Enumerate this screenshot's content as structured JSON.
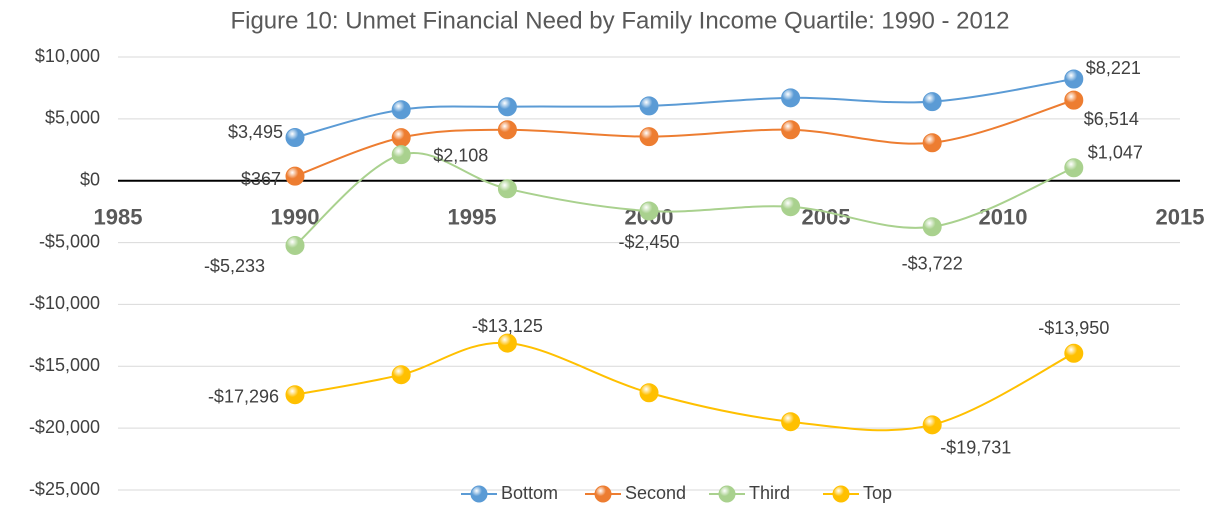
{
  "chart_data": {
    "type": "line",
    "title": "Figure 10: Unmet Financial Need by Family Income Quartile: 1990 - 2012",
    "x": [
      1990,
      1993,
      1996,
      2000,
      2004,
      2008,
      2012
    ],
    "series": [
      {
        "name": "Bottom",
        "color": "#5b9bd5",
        "values": [
          3495,
          5740,
          5980,
          6050,
          6700,
          6390,
          8221
        ],
        "value_labels": [
          "$3,495",
          null,
          null,
          null,
          null,
          null,
          "$8,221"
        ]
      },
      {
        "name": "Second",
        "color": "#ed7d31",
        "values": [
          367,
          3480,
          4120,
          3560,
          4120,
          3070,
          6514
        ],
        "value_labels": [
          "$367",
          null,
          null,
          null,
          null,
          null,
          "$6,514"
        ]
      },
      {
        "name": "Third",
        "color": "#a9d18e",
        "values": [
          -5233,
          2108,
          -650,
          -2450,
          -2100,
          -3722,
          1047
        ],
        "value_labels": [
          "-$5,233",
          "$2,108",
          null,
          "-$2,450",
          null,
          "-$3,722",
          "$1,047"
        ]
      },
      {
        "name": "Top",
        "color": "#ffc000",
        "values": [
          -17296,
          -15680,
          -13125,
          -17140,
          -19480,
          -19731,
          -13950
        ],
        "value_labels": [
          "-$17,296",
          null,
          "-$13,125",
          null,
          null,
          "-$19,731",
          "-$13,950"
        ]
      }
    ],
    "xlim": [
      1985,
      2015
    ],
    "xticks": [
      1985,
      1990,
      1995,
      2000,
      2005,
      2010,
      2015
    ],
    "ylim": [
      -25000,
      10000
    ],
    "yticks": [
      {
        "value": -25000,
        "label": "-$25,000"
      },
      {
        "value": -20000,
        "label": "-$20,000"
      },
      {
        "value": -15000,
        "label": "-$15,000"
      },
      {
        "value": -10000,
        "label": "-$10,000"
      },
      {
        "value": -5000,
        "label": "-$5,000"
      },
      {
        "value": 0,
        "label": "$0"
      },
      {
        "value": 5000,
        "label": "$5,000"
      },
      {
        "value": 10000,
        "label": "$10,000"
      }
    ],
    "grid": true,
    "legend": "bottom",
    "smooth": true
  }
}
